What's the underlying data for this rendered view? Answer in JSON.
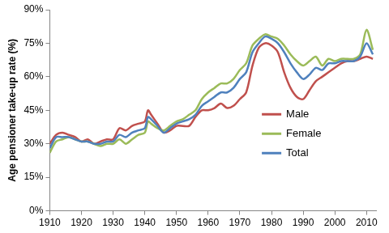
{
  "chart_data": {
    "type": "line",
    "y_label": "Age pensioner take-up rate (%)",
    "x": [
      1910,
      1912,
      1914,
      1916,
      1918,
      1920,
      1922,
      1924,
      1926,
      1928,
      1930,
      1932,
      1934,
      1936,
      1938,
      1940,
      1941,
      1942,
      1944,
      1946,
      1948,
      1950,
      1952,
      1954,
      1956,
      1958,
      1960,
      1962,
      1964,
      1966,
      1968,
      1970,
      1972,
      1974,
      1976,
      1978,
      1980,
      1982,
      1984,
      1986,
      1988,
      1990,
      1992,
      1994,
      1996,
      1998,
      2000,
      2002,
      2004,
      2006,
      2008,
      2010,
      2012
    ],
    "series": [
      {
        "name": "Male",
        "color": "#c0504d",
        "values": [
          30,
          34,
          35,
          34,
          33,
          31,
          32,
          30,
          31,
          32,
          32,
          37,
          36,
          38,
          39,
          40,
          45,
          43,
          39,
          35,
          36,
          38,
          38,
          38,
          42,
          45,
          45,
          46,
          48,
          46,
          47,
          50,
          53,
          65,
          73,
          75,
          74,
          71,
          62,
          55,
          51,
          50,
          54,
          58,
          60,
          62,
          64,
          66,
          67,
          67,
          68,
          69,
          68
        ]
      },
      {
        "name": "Female",
        "color": "#9bbb59",
        "values": [
          26,
          31,
          32,
          33,
          32,
          31,
          31,
          30,
          29,
          30,
          30,
          32,
          30,
          32,
          34,
          35,
          40,
          39,
          37,
          36,
          38,
          40,
          41,
          43,
          45,
          50,
          53,
          55,
          57,
          57,
          59,
          63,
          66,
          74,
          77,
          79,
          78,
          77,
          74,
          70,
          67,
          65,
          67,
          69,
          65,
          68,
          67,
          68,
          68,
          68,
          70,
          81,
          72
        ]
      },
      {
        "name": "Total",
        "color": "#4f81bd",
        "values": [
          28,
          33,
          33,
          33,
          32,
          31,
          31,
          30,
          30,
          31,
          31,
          34,
          33,
          35,
          36,
          37,
          42,
          41,
          38,
          35,
          37,
          39,
          40,
          41,
          43,
          47,
          49,
          51,
          53,
          53,
          55,
          59,
          62,
          71,
          75,
          78,
          77,
          75,
          71,
          66,
          62,
          59,
          61,
          64,
          63,
          66,
          66,
          67,
          67,
          67,
          69,
          75,
          70
        ]
      }
    ],
    "xlim": [
      1910,
      2013
    ],
    "xticks": [
      1910,
      1920,
      1930,
      1940,
      1950,
      1960,
      1970,
      1980,
      1990,
      2000,
      2010
    ],
    "ylim": [
      0,
      90
    ],
    "yticks": [
      {
        "value": 0,
        "label": "0%"
      },
      {
        "value": 15,
        "label": "15%"
      },
      {
        "value": 30,
        "label": "30%"
      },
      {
        "value": 45,
        "label": "45%"
      },
      {
        "value": 60,
        "label": "60%"
      },
      {
        "value": 75,
        "label": "75%"
      },
      {
        "value": 90,
        "label": "90%"
      }
    ],
    "grid": false,
    "legend": "right"
  }
}
